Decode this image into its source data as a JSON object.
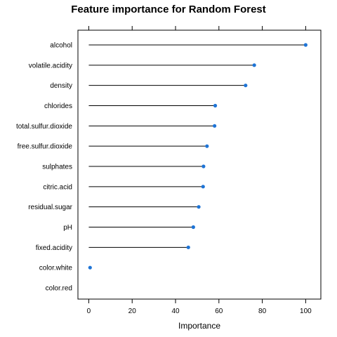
{
  "chart_data": {
    "type": "lollipop",
    "title": "Feature importance for Random Forest",
    "xlabel": "Importance",
    "ylabel": "",
    "xlim": [
      -5,
      107
    ],
    "xticks": [
      0,
      20,
      40,
      60,
      80,
      100
    ],
    "grid": false,
    "legend": "none",
    "point_color": "#1e74d6",
    "line_color": "#000000",
    "categories": [
      "alcohol",
      "volatile.acidity",
      "density",
      "chlorides",
      "total.sulfur.dioxide",
      "free.sulfur.dioxide",
      "sulphates",
      "citric.acid",
      "residual.sugar",
      "pH",
      "fixed.acidity",
      "color.white",
      "color.red"
    ],
    "values": [
      100,
      76.3,
      72.3,
      58.3,
      58.0,
      54.5,
      52.9,
      52.7,
      50.7,
      48.2,
      45.9,
      0.6,
      0.0
    ]
  }
}
